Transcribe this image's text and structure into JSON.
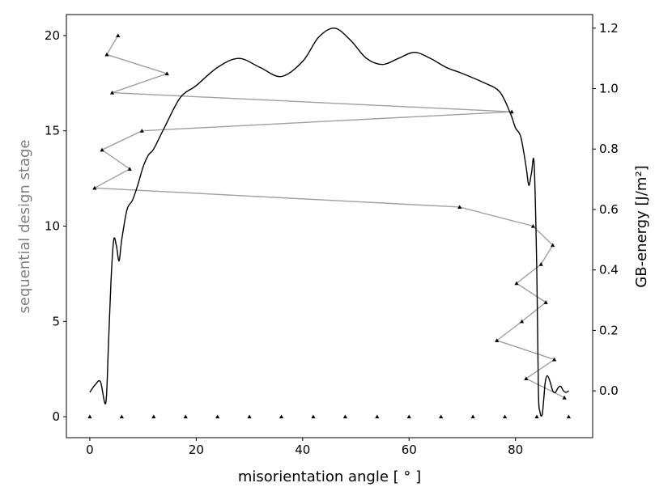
{
  "chart_data": {
    "type": "line",
    "xlabel": "misorientation angle [ ° ]",
    "ylabel_left": "sequential design stage",
    "ylabel_right": "GB-energy [J/m²]",
    "xlim": [
      -4.4,
      94.5
    ],
    "ylim_left": [
      -1.1,
      21.1
    ],
    "ylim_right": [
      -0.155,
      1.245
    ],
    "x_ticks": [
      0,
      20,
      40,
      60,
      80
    ],
    "y_left_ticks": [
      0,
      5,
      10,
      15,
      20
    ],
    "y_right_ticks": [
      0.0,
      0.2,
      0.4,
      0.6,
      0.8,
      1.0,
      1.2
    ],
    "grid": false,
    "colors": {
      "design_path": "#a0a0a0",
      "energy_curve": "#000000",
      "left_axis_label": "#808080"
    },
    "series": [
      {
        "axis": "left",
        "style": "markers",
        "x": [
          0,
          6,
          12,
          18,
          24,
          30,
          36,
          42,
          48,
          54,
          60,
          66,
          72,
          78,
          84,
          90
        ],
        "y": [
          0,
          0,
          0,
          0,
          0,
          0,
          0,
          0,
          0,
          0,
          0,
          0,
          0,
          0,
          0,
          0
        ]
      },
      {
        "axis": "left",
        "style": "line+markers",
        "x": [
          89.2,
          82,
          87.3,
          76.5,
          81.2,
          85.7,
          80.2,
          84.8,
          87,
          83.3,
          69.5,
          0.9,
          7.5,
          2.3,
          9.8,
          79.3,
          4.2,
          14.5,
          3.2,
          5.3
        ],
        "y": [
          1,
          2,
          3,
          4,
          5,
          6,
          7,
          8,
          9,
          10,
          11,
          12,
          13,
          14,
          15,
          16,
          17,
          18,
          19,
          20
        ]
      },
      {
        "axis": "right",
        "style": "line",
        "x": [
          0,
          1,
          2,
          3,
          3.5,
          4,
          4.5,
          5,
          5.5,
          6,
          7,
          8,
          9,
          10,
          11,
          12,
          14,
          17,
          20,
          24,
          28,
          32,
          36,
          40,
          43,
          46,
          49,
          52,
          55,
          58,
          61,
          64,
          67,
          70,
          74,
          77,
          79,
          80,
          81,
          82,
          82.5,
          83,
          83.5,
          84,
          84.3,
          84.6,
          85,
          85.3,
          85.6,
          86,
          86.5,
          87,
          87.5,
          88,
          88.5,
          89,
          89.5,
          90
        ],
        "y": [
          -0.005,
          0.02,
          0.03,
          -0.04,
          0.15,
          0.37,
          0.5,
          0.48,
          0.43,
          0.5,
          0.6,
          0.63,
          0.68,
          0.74,
          0.78,
          0.8,
          0.87,
          0.97,
          1.01,
          1.07,
          1.1,
          1.07,
          1.04,
          1.09,
          1.17,
          1.2,
          1.16,
          1.1,
          1.08,
          1.1,
          1.12,
          1.1,
          1.07,
          1.05,
          1.02,
          0.99,
          0.92,
          0.87,
          0.84,
          0.74,
          0.68,
          0.72,
          0.75,
          0.4,
          0.0,
          -0.07,
          -0.08,
          -0.03,
          0.03,
          0.05,
          0.03,
          0.0,
          -0.005,
          0.01,
          0.015,
          0.0,
          -0.005,
          0.0
        ]
      }
    ]
  }
}
